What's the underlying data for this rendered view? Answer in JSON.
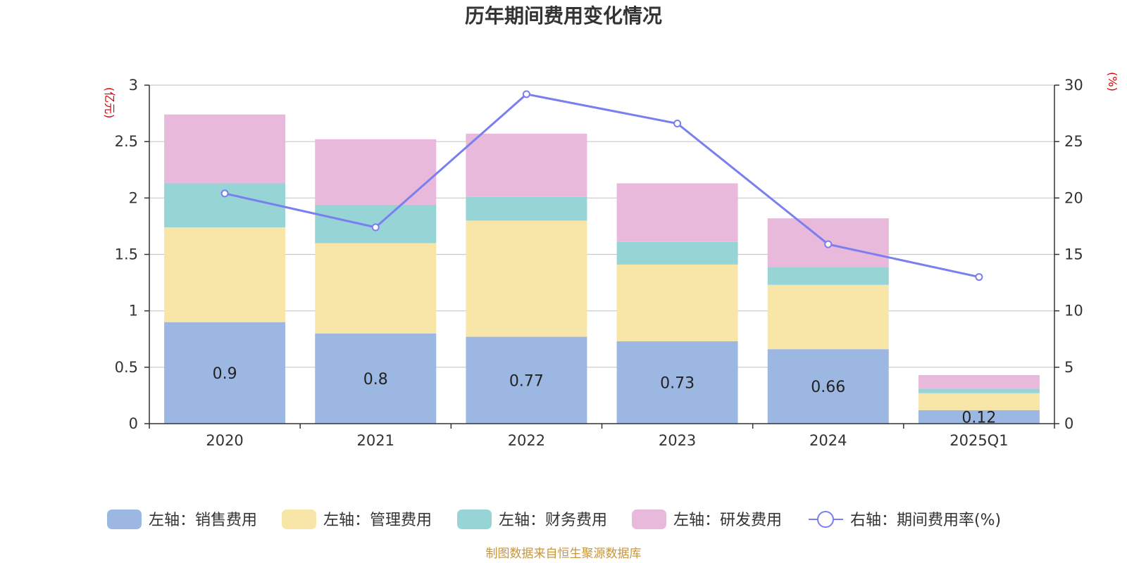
{
  "chart_data": {
    "type": "bar",
    "stacked": true,
    "title": "历年期间费用变化情况",
    "categories": [
      "2020",
      "2021",
      "2022",
      "2023",
      "2024",
      "2025Q1"
    ],
    "left_axis": {
      "unit": "(亿元)",
      "ylim": [
        0,
        3
      ],
      "ticks": [
        "0",
        "0.5",
        "1",
        "1.5",
        "2",
        "2.5",
        "3"
      ]
    },
    "right_axis": {
      "unit": "(%)",
      "ylim": [
        0,
        30
      ],
      "ticks": [
        "0",
        "5",
        "10",
        "15",
        "20",
        "25",
        "30"
      ]
    },
    "series": [
      {
        "name": "左轴：销售费用",
        "axis": "left",
        "color": "#9cb8e2",
        "values": [
          0.9,
          0.8,
          0.77,
          0.73,
          0.66,
          0.12
        ],
        "labels": [
          "0.9",
          "0.8",
          "0.77",
          "0.73",
          "0.66",
          "0.12"
        ]
      },
      {
        "name": "左轴：管理费用",
        "axis": "left",
        "color": "#f7e6a8",
        "values": [
          0.84,
          0.8,
          1.03,
          0.68,
          0.57,
          0.15
        ]
      },
      {
        "name": "左轴：财务费用",
        "axis": "left",
        "color": "#97d4d5",
        "values": [
          0.39,
          0.34,
          0.21,
          0.2,
          0.16,
          0.04
        ]
      },
      {
        "name": "左轴：研发费用",
        "axis": "left",
        "color": "#e8b9da",
        "values": [
          0.61,
          0.58,
          0.56,
          0.52,
          0.43,
          0.12
        ]
      },
      {
        "name": "右轴：期间费用率(%)",
        "axis": "right",
        "type": "line",
        "color": "#7a7ff0",
        "values": [
          20.4,
          17.4,
          29.2,
          26.6,
          15.9,
          13.0
        ]
      }
    ],
    "legend_position": "bottom",
    "grid": true
  },
  "source_text": "制图数据来自恒生聚源数据库"
}
